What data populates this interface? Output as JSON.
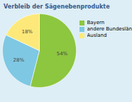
{
  "chart_data": {
    "type": "pie",
    "title": "Verbleib der Sägenebenprodukte",
    "categories": [
      "Bayern",
      "andere Bundesländer",
      "Ausland"
    ],
    "values": [
      54,
      28,
      18
    ],
    "value_labels": [
      "54%",
      "28%",
      "18%"
    ],
    "colors": [
      "#8dc63f",
      "#7ec8e3",
      "#fde97a"
    ],
    "data_labels": true,
    "legend": "right"
  }
}
